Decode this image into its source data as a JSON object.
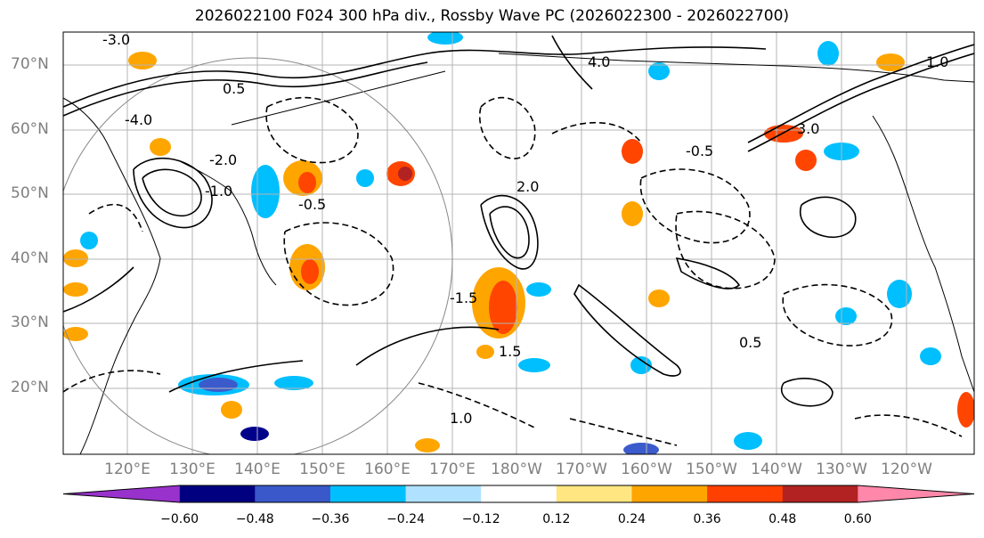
{
  "title": "2026022100 F024 300 hPa div., Rossby Wave PC (2026022300 - 2026022700)",
  "map": {
    "lat_labels": [
      "70°N",
      "60°N",
      "50°N",
      "40°N",
      "30°N",
      "20°N"
    ],
    "lon_labels": [
      "120°E",
      "130°E",
      "140°E",
      "150°E",
      "160°E",
      "170°E",
      "180°W",
      "170°W",
      "160°W",
      "150°W",
      "140°W",
      "130°W",
      "120°W"
    ],
    "contour_labels": [
      "-3.0",
      "-4.0",
      "0.5",
      "-2.0",
      "-0.5",
      "1.0",
      "-1.0",
      "1.5",
      "2.0",
      "3.0",
      "-1.5",
      "4.0",
      "-0.5",
      "0.5",
      "1.0"
    ],
    "colors": {
      "negative": [
        "#9b30d8",
        "#00008b",
        "#3b5bcc",
        "#00bfff",
        "#b0e0ff"
      ],
      "positive": [
        "#ffe680",
        "#ffa500",
        "#ff4500",
        "#b22222",
        "#ff88aa"
      ],
      "contour": "#000000",
      "grid": "#b4b4b4"
    }
  },
  "colorbar": {
    "ticks": [
      "−0.60",
      "−0.48",
      "−0.36",
      "−0.24",
      "−0.12",
      "0.12",
      "0.24",
      "0.36",
      "0.48",
      "0.60"
    ],
    "colors": [
      "#9932cc",
      "#000080",
      "#3a58c9",
      "#00bfff",
      "#b0e2ff",
      "#ffffff",
      "#ffe680",
      "#ffa500",
      "#ff4000",
      "#b22222",
      "#ff88aa"
    ]
  }
}
